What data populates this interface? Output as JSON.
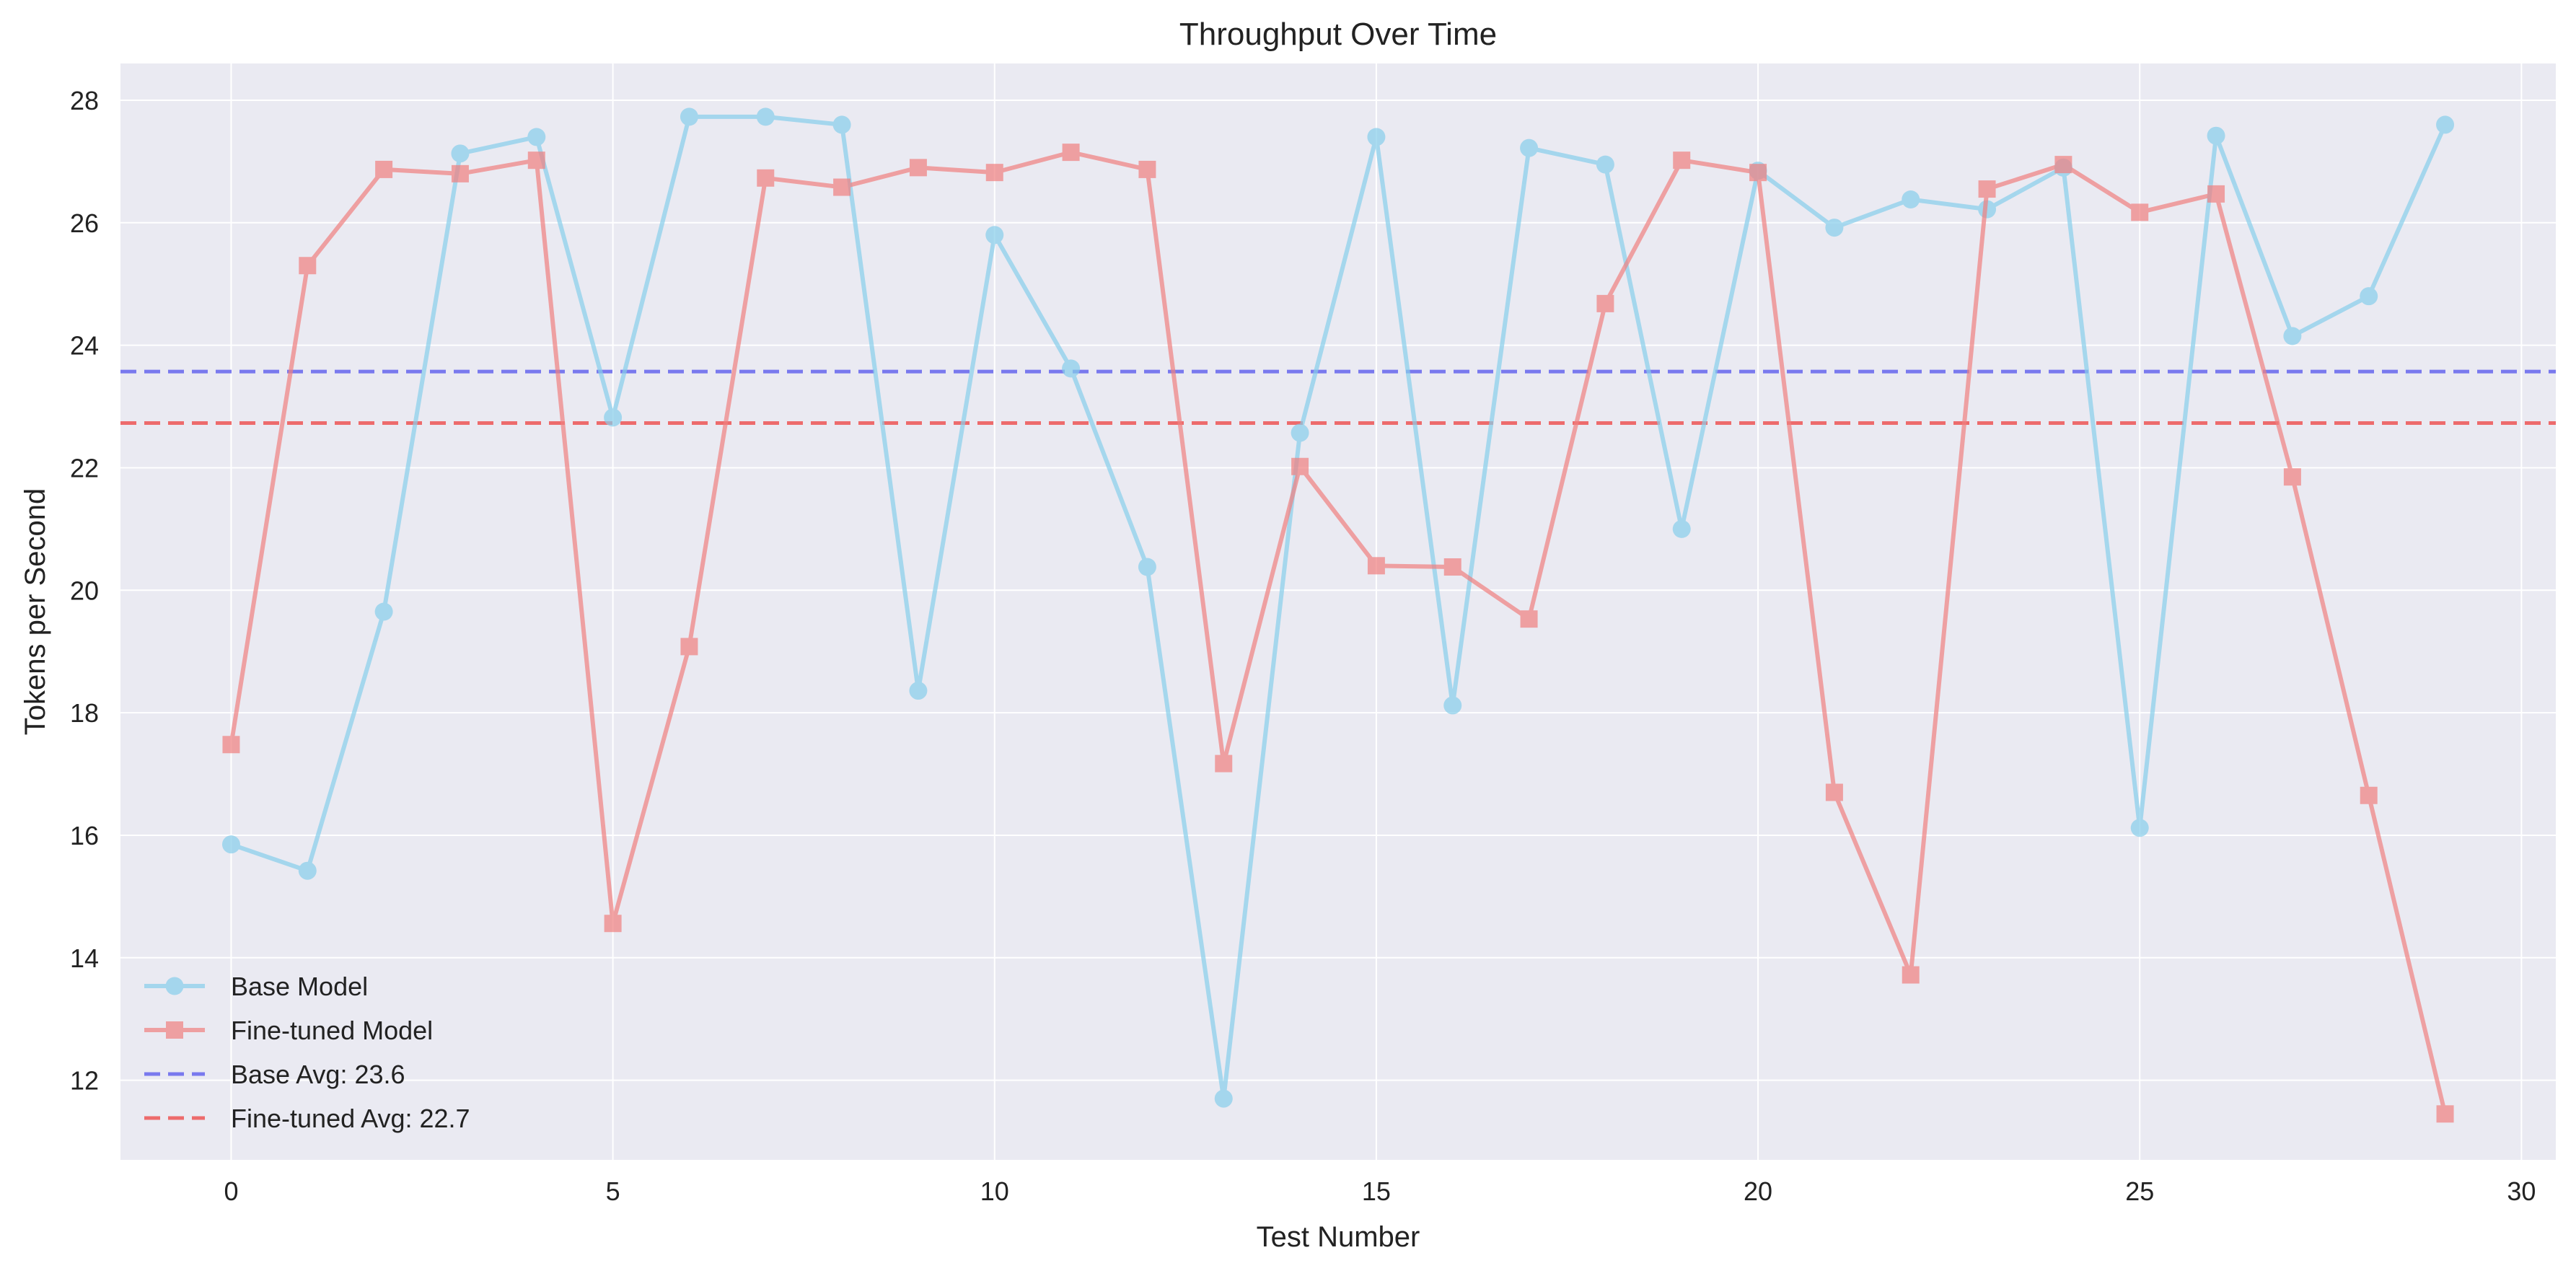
{
  "chart_data": {
    "type": "line",
    "title": "Throughput Over Time",
    "xlabel": "Test Number",
    "ylabel": "Tokens per Second",
    "xlim": [
      -1.45,
      30.45
    ],
    "ylim": [
      10.7,
      28.6
    ],
    "xticks": [
      0,
      5,
      10,
      15,
      20,
      25,
      30
    ],
    "yticks": [
      12,
      14,
      16,
      18,
      20,
      22,
      24,
      26,
      28
    ],
    "grid": true,
    "legend_position": "lower-left",
    "x": [
      0,
      1,
      2,
      3,
      4,
      5,
      6,
      7,
      8,
      9,
      10,
      11,
      12,
      13,
      14,
      15,
      16,
      17,
      18,
      19,
      20,
      21,
      22,
      23,
      24,
      25,
      26,
      27,
      28,
      29
    ],
    "series": [
      {
        "name": "Base Model",
        "marker": "circle",
        "color": "#87ceeb",
        "values": [
          15.85,
          15.42,
          19.65,
          27.13,
          27.4,
          22.82,
          27.73,
          27.73,
          27.6,
          18.36,
          25.8,
          23.62,
          20.38,
          11.7,
          22.57,
          27.4,
          18.12,
          27.22,
          26.95,
          21.0,
          26.85,
          25.92,
          26.38,
          26.22,
          26.9,
          16.12,
          27.42,
          24.15,
          24.8,
          27.6
        ]
      },
      {
        "name": "Fine-tuned Model",
        "marker": "square",
        "color": "#f08080",
        "values": [
          17.48,
          25.3,
          26.87,
          26.8,
          27.02,
          14.56,
          19.08,
          26.73,
          26.58,
          26.9,
          26.82,
          27.15,
          26.87,
          17.17,
          22.02,
          20.4,
          20.38,
          19.53,
          24.68,
          27.02,
          26.82,
          16.7,
          13.72,
          26.55,
          26.95,
          26.17,
          26.47,
          21.85,
          16.65,
          11.45
        ]
      }
    ],
    "reference_lines": [
      {
        "name": "Base Avg: 23.6",
        "value": 23.57,
        "color": "#6666ee",
        "style": "dashed"
      },
      {
        "name": "Fine-tuned Avg: 22.7",
        "value": 22.73,
        "color": "#ee5555",
        "style": "dashed"
      }
    ]
  },
  "colors": {
    "plot_background": "#eaeaf2",
    "grid": "#ffffff"
  }
}
